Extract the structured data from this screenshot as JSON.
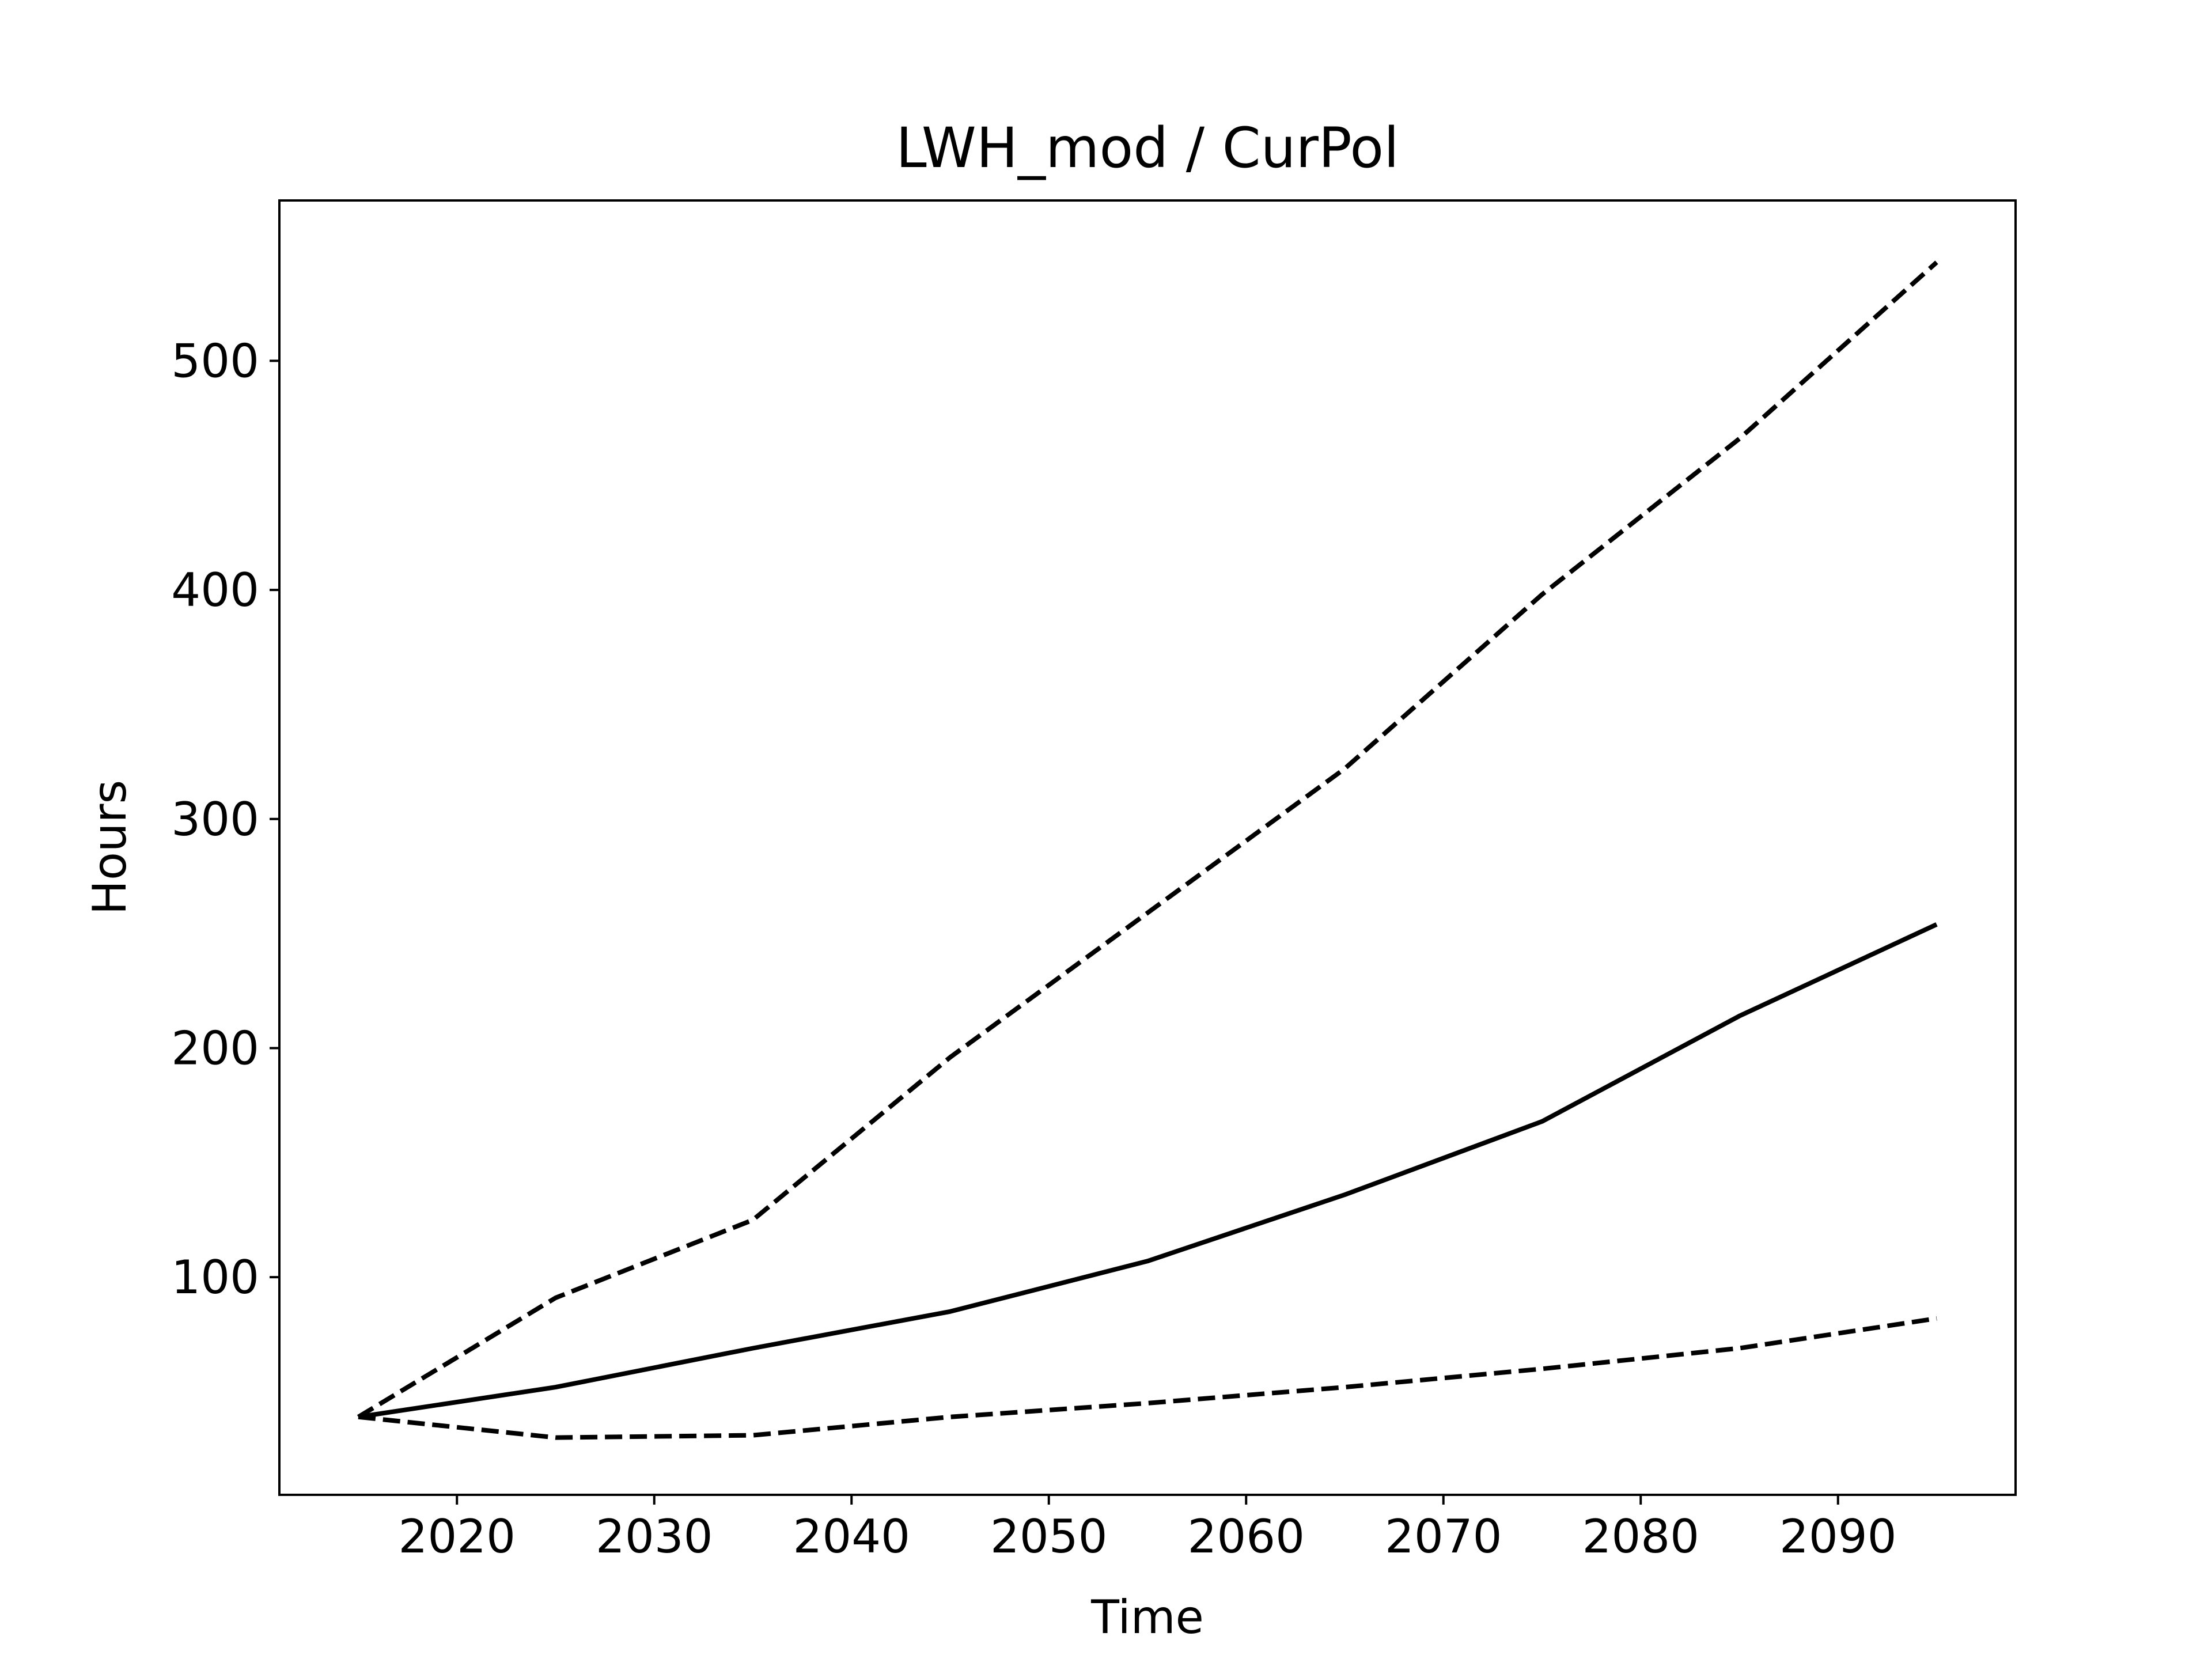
{
  "chart_data": {
    "type": "line",
    "title": "LWH_mod / CurPol",
    "xlabel": "Time",
    "ylabel": "Hours",
    "xlim": [
      2011,
      2099
    ],
    "ylim": [
      5,
      570
    ],
    "x_ticks": [
      2020,
      2030,
      2040,
      2050,
      2060,
      2070,
      2080,
      2090
    ],
    "y_ticks": [
      100,
      200,
      300,
      400,
      500
    ],
    "grid": false,
    "legend": "none",
    "x": [
      2015,
      2025,
      2035,
      2045,
      2055,
      2065,
      2075,
      2085,
      2095
    ],
    "series": [
      {
        "style": "dashed",
        "color": "#000000",
        "values": [
          39,
          91,
          125,
          196,
          259,
          322,
          398,
          466,
          543
        ]
      },
      {
        "style": "solid",
        "color": "#000000",
        "values": [
          39,
          52,
          69,
          85,
          107,
          136,
          168,
          214,
          254
        ]
      },
      {
        "style": "dashed",
        "color": "#000000",
        "values": [
          39,
          30,
          31,
          39,
          45,
          52,
          60,
          69,
          82
        ]
      }
    ]
  }
}
